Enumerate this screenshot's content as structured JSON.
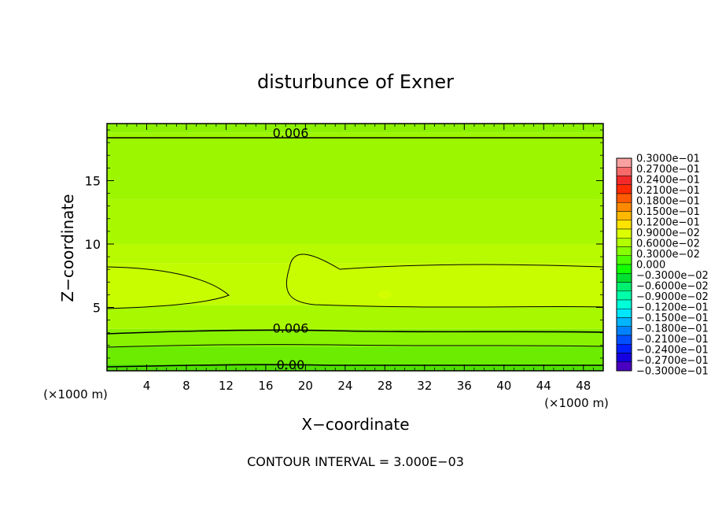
{
  "chart_data": {
    "type": "heatmap",
    "title": "disturbunce of Exner",
    "xlabel": "X−coordinate",
    "ylabel": "Z−coordinate",
    "x_unit_left": "(×1000 m)",
    "x_unit_right": "(×1000 m)",
    "footer": "CONTOUR INTERVAL = 3.000E−03",
    "xlim": [
      0,
      50
    ],
    "ylim": [
      0,
      19.5
    ],
    "x_ticks": [
      "4",
      "8",
      "12",
      "16",
      "20",
      "24",
      "28",
      "32",
      "36",
      "40",
      "44",
      "48"
    ],
    "y_ticks": [
      "5",
      "10",
      "15"
    ],
    "contour_labels": [
      {
        "text": "0.006",
        "x": 18.5,
        "z": 18.8
      },
      {
        "text": "0.006",
        "x": 18.5,
        "z": 3.4
      },
      {
        "text": "0.00",
        "x": 18.5,
        "z": 0.5
      }
    ],
    "contour_interval": 0.003,
    "colorbar": {
      "colors": [
        "#f9a0a0",
        "#f66a6a",
        "#f22a2a",
        "#ff2a00",
        "#ff5a00",
        "#ff8a00",
        "#ffb800",
        "#ffe400",
        "#dcff00",
        "#b2ff00",
        "#86ff00",
        "#4cff00",
        "#12ff00",
        "#00e030",
        "#00f070",
        "#00ffa8",
        "#00ffd8",
        "#00e6ff",
        "#00b4ff",
        "#0082ff",
        "#0050ff",
        "#0020ff",
        "#1400e0",
        "#4a00c0"
      ],
      "labels": [
        "0.3000e−01",
        "0.2700e−01",
        "0.2400e−01",
        "0.2100e−01",
        "0.1800e−01",
        "0.1500e−01",
        "0.1200e−01",
        "0.9000e−02",
        "0.6000e−02",
        "0.3000e−02",
        "0.000",
        "−0.3000e−02",
        "−0.6000e−02",
        "−0.9000e−02",
        "−0.1200e−01",
        "−0.1500e−01",
        "−0.1800e−01",
        "−0.2100e−01",
        "−0.2400e−01",
        "−0.2700e−01",
        "−0.3000e−01"
      ]
    },
    "field_bands": [
      {
        "z0": 0.0,
        "z1": 0.5,
        "color": "#4fe000"
      },
      {
        "z0": 0.5,
        "z1": 1.9,
        "color": "#6cec00"
      },
      {
        "z0": 1.9,
        "z1": 3.3,
        "color": "#88f200"
      },
      {
        "z0": 3.3,
        "z1": 5.2,
        "color": "#a8f800"
      },
      {
        "z0": 5.2,
        "z1": 8.5,
        "color": "#c2fc00"
      },
      {
        "z0": 8.5,
        "z1": 10.0,
        "color": "#b8fa00"
      },
      {
        "z0": 10.0,
        "z1": 13.5,
        "color": "#a8f800"
      },
      {
        "z0": 13.5,
        "z1": 18.8,
        "color": "#9cf600"
      },
      {
        "z0": 18.8,
        "z1": 19.5,
        "color": "#8cf200"
      }
    ],
    "grid": false
  }
}
